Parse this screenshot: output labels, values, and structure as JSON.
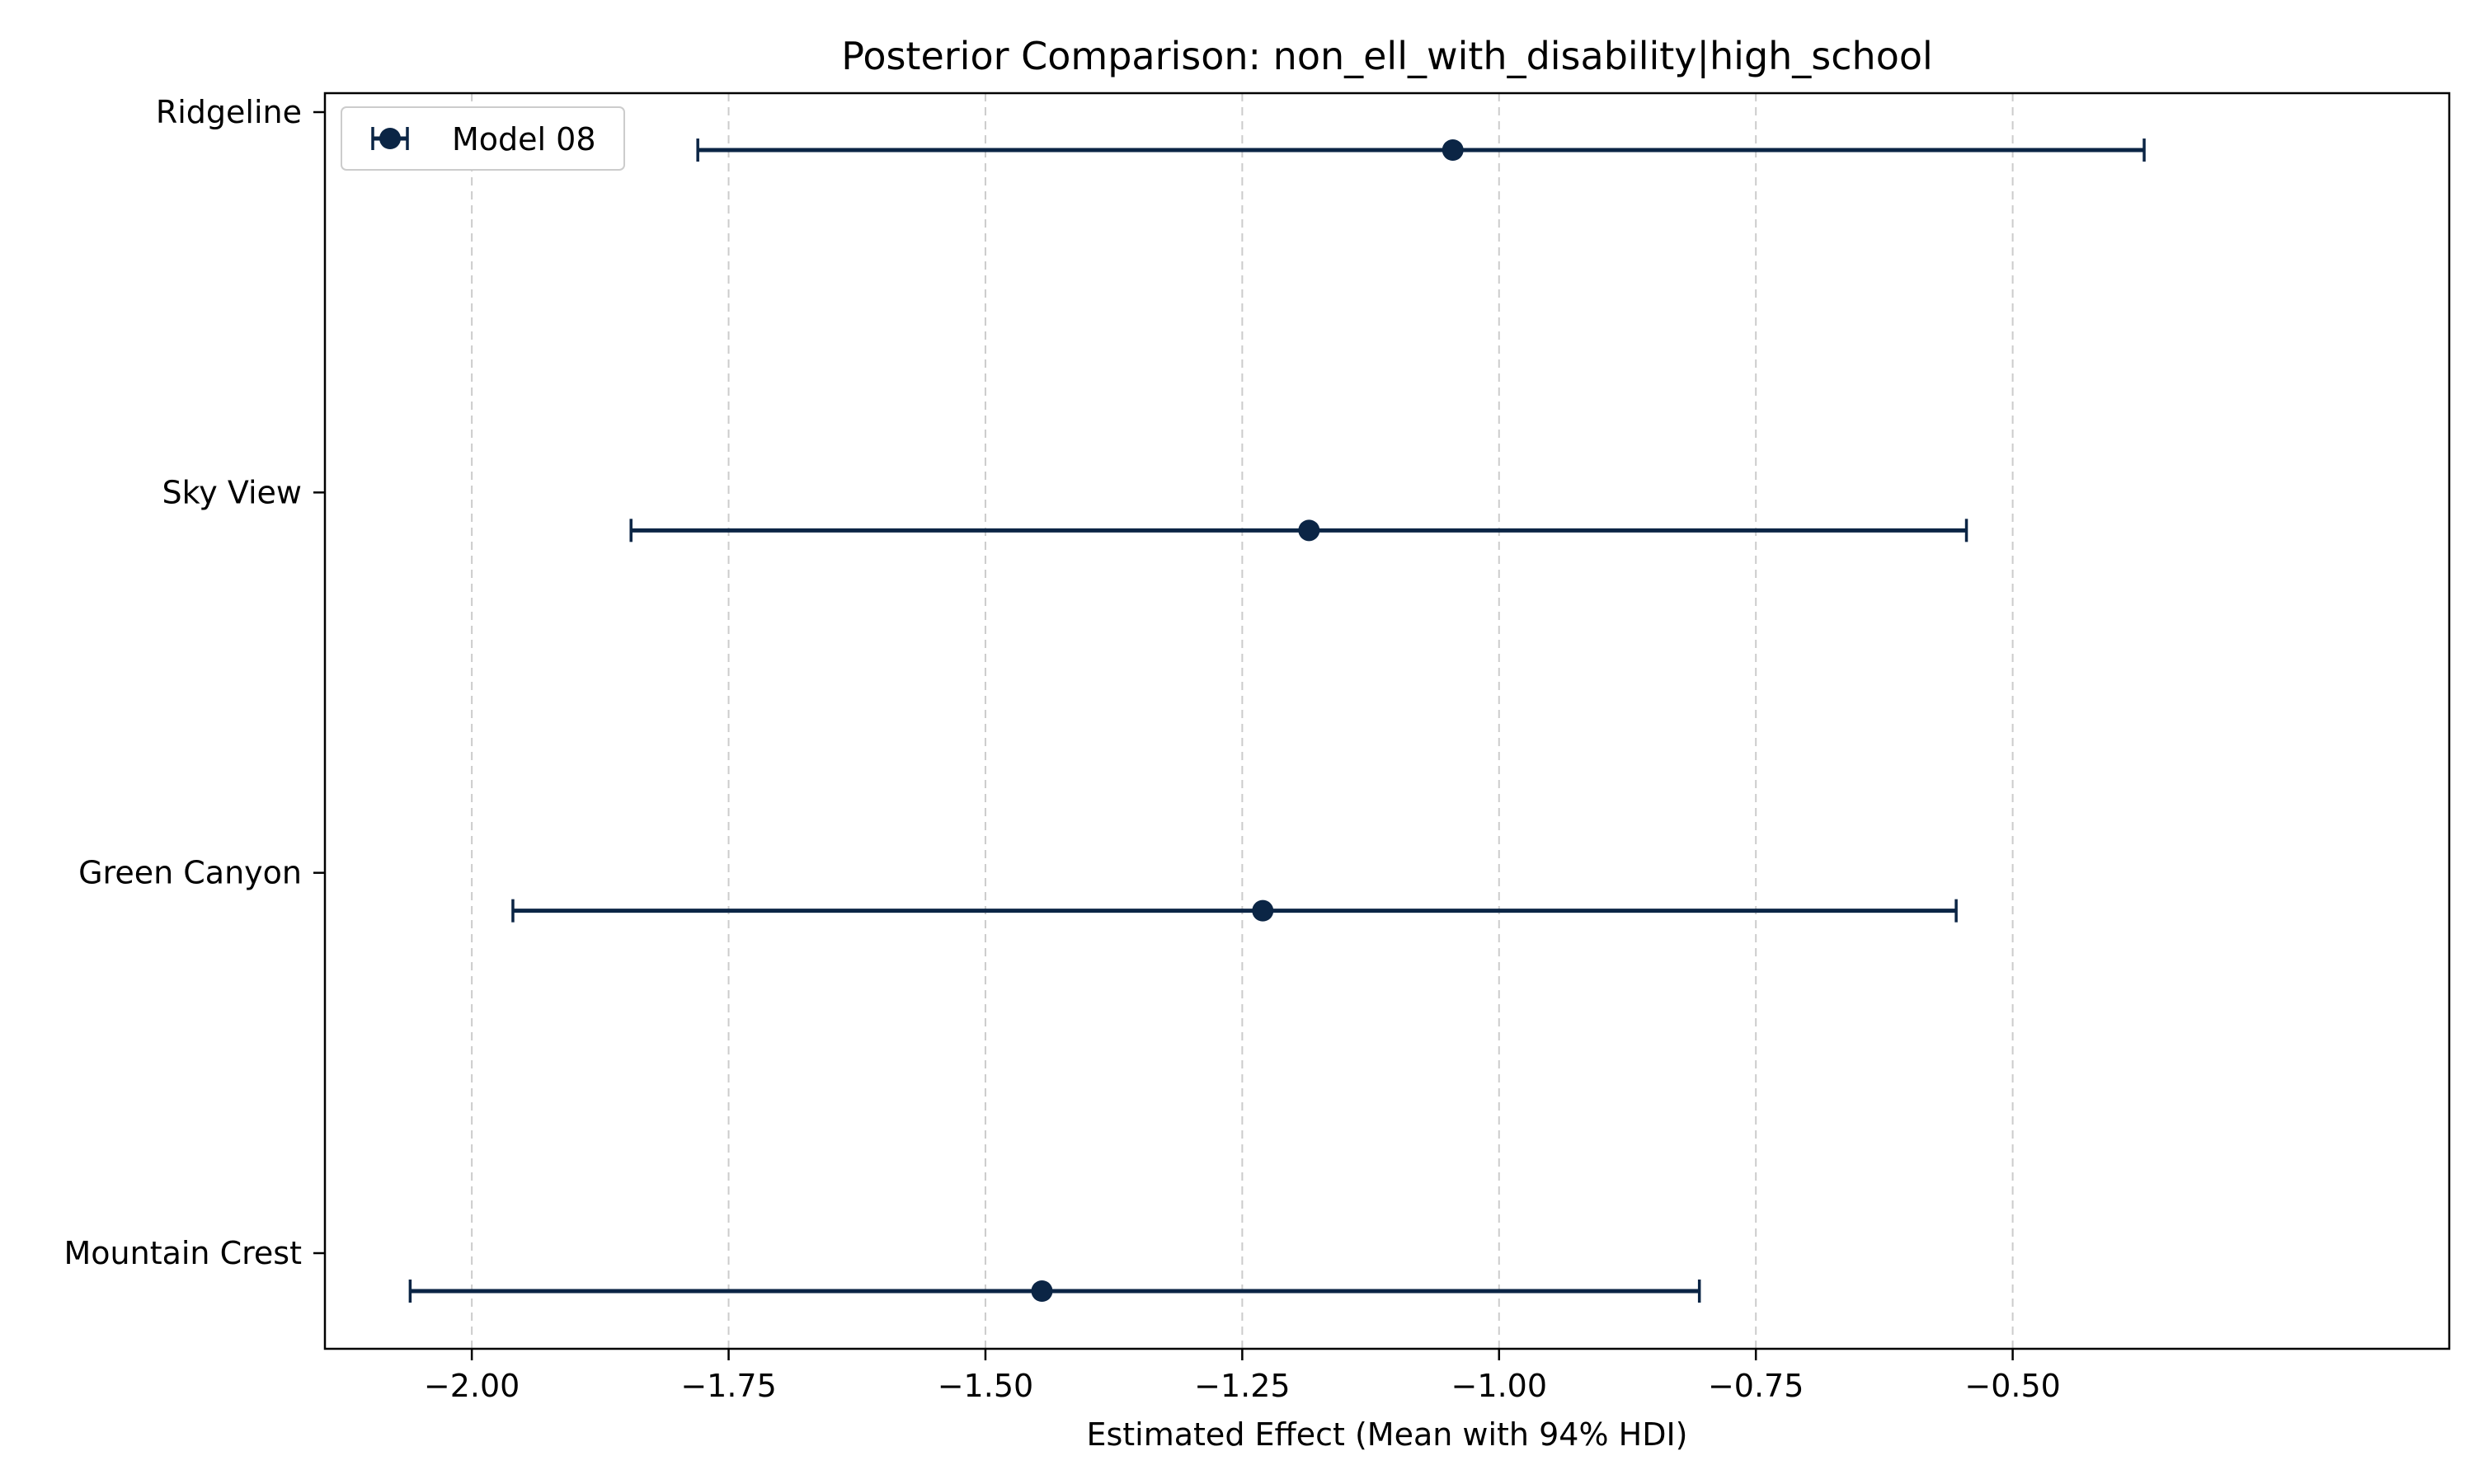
{
  "chart_data": {
    "type": "errorbar",
    "title": "Posterior Comparison: non_ell_with_disability|high_school",
    "xlabel": "Estimated Effect (Mean with 94% HDI)",
    "ylabel": "",
    "xlim": [
      -2.143,
      -0.075
    ],
    "xticks": [
      -2.0,
      -1.75,
      -1.5,
      -1.25,
      -1.0,
      -0.75,
      -0.5
    ],
    "xtick_labels": [
      "−2.00",
      "−1.75",
      "−1.50",
      "−1.25",
      "−1.00",
      "−0.75",
      "−0.50"
    ],
    "categories": [
      "Ridgeline",
      "Sky View",
      "Green Canyon",
      "Mountain Crest"
    ],
    "grid": "x-dashed",
    "legend_position": "upper-left",
    "series": [
      {
        "name": "Model 08",
        "color": "#0b2545",
        "points": [
          {
            "category": "Ridgeline",
            "mean": -1.045,
            "hdi_low": -1.78,
            "hdi_high": -0.372
          },
          {
            "category": "Sky View",
            "mean": -1.185,
            "hdi_low": -1.845,
            "hdi_high": -0.545
          },
          {
            "category": "Green Canyon",
            "mean": -1.23,
            "hdi_low": -1.96,
            "hdi_high": -0.555
          },
          {
            "category": "Mountain Crest",
            "mean": -1.445,
            "hdi_low": -2.06,
            "hdi_high": -0.805
          }
        ]
      }
    ]
  }
}
